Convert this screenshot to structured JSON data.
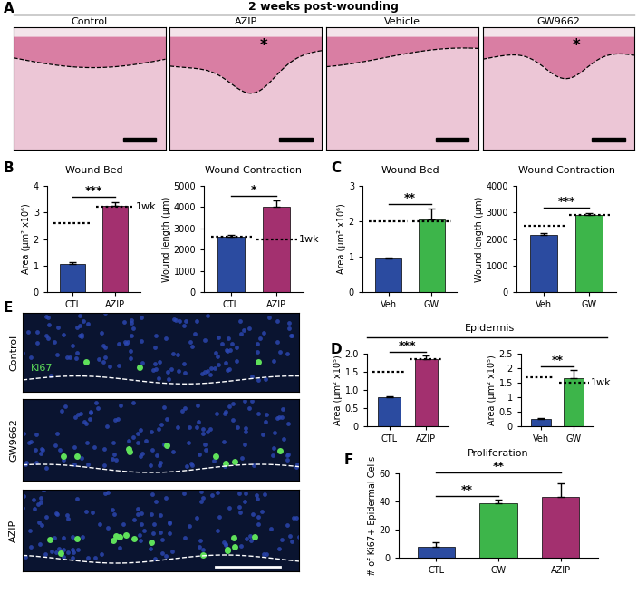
{
  "figure": {
    "header": "2 weeks post-wounding",
    "panel_labels": [
      "A",
      "B",
      "C",
      "D",
      "E",
      "F"
    ],
    "group_label": "Epidermis",
    "wound_images": [
      "Control",
      "AZIP",
      "Vehicle",
      "GW9662"
    ],
    "marked_images": [
      "AZIP",
      "GW9662"
    ],
    "mark": "*",
    "stain_images": [
      "Control",
      "GW9662",
      "AZIP"
    ],
    "stain": "Ki67"
  },
  "chart_data": [
    {
      "type": "bar",
      "title": "Wound Bed",
      "ylabel": "Area (µm² x10⁶)",
      "categories": [
        "CTL",
        "AZIP"
      ],
      "values": [
        1.05,
        3.25
      ],
      "errors": [
        0.08,
        0.15
      ],
      "colors": [
        "#2b4ba0",
        "#a3306f"
      ],
      "reference_values": [
        2.6,
        3.2
      ],
      "annotations": [
        {
          "text": "1wk",
          "category": "AZIP"
        }
      ],
      "significance": [
        {
          "from": "CTL",
          "to": "AZIP",
          "text": "***"
        }
      ],
      "ylim": [
        0,
        4
      ],
      "yticks": [
        0,
        1,
        2,
        3,
        4
      ]
    },
    {
      "type": "bar",
      "title": "Wound Contraction",
      "ylabel": "Wound length (µm)",
      "categories": [
        "CTL",
        "AZIP"
      ],
      "values": [
        2600,
        4000
      ],
      "errors": [
        100,
        300
      ],
      "colors": [
        "#2b4ba0",
        "#a3306f"
      ],
      "reference_values": [
        2600,
        2500
      ],
      "annotations": [
        {
          "text": "1wk",
          "category": "AZIP"
        }
      ],
      "significance": [
        {
          "from": "CTL",
          "to": "AZIP",
          "text": "*"
        }
      ],
      "ylim": [
        0,
        5000
      ],
      "yticks": [
        0,
        1000,
        2000,
        3000,
        4000,
        5000
      ]
    },
    {
      "type": "bar",
      "title": "Wound Bed",
      "ylabel": "Area (µm² x10⁶)",
      "categories": [
        "Veh",
        "GW"
      ],
      "values": [
        0.95,
        2.05
      ],
      "errors": [
        0.03,
        0.3
      ],
      "colors": [
        "#2b4ba0",
        "#3db54a"
      ],
      "reference_values": [
        2.0,
        2.0
      ],
      "significance": [
        {
          "from": "Veh",
          "to": "GW",
          "text": "**"
        }
      ],
      "ylim": [
        0,
        3
      ],
      "yticks": [
        0,
        1,
        2,
        3
      ]
    },
    {
      "type": "bar",
      "title": "Wound Contraction",
      "ylabel": "Wound length (µm)",
      "categories": [
        "Veh",
        "GW"
      ],
      "values": [
        2150,
        2900
      ],
      "errors": [
        80,
        80
      ],
      "colors": [
        "#2b4ba0",
        "#3db54a"
      ],
      "reference_values": [
        2500,
        2900
      ],
      "significance": [
        {
          "from": "Veh",
          "to": "GW",
          "text": "***"
        }
      ],
      "ylim": [
        0,
        4000
      ],
      "yticks": [
        0,
        1000,
        2000,
        3000,
        4000
      ]
    },
    {
      "type": "bar",
      "ylabel": "Area (µm² x10⁵)",
      "categories": [
        "CTL",
        "AZIP"
      ],
      "values": [
        0.8,
        1.85
      ],
      "errors": [
        0.03,
        0.1
      ],
      "colors": [
        "#2b4ba0",
        "#a3306f"
      ],
      "reference_values": [
        1.5,
        1.85
      ],
      "significance": [
        {
          "from": "CTL",
          "to": "AZIP",
          "text": "***"
        }
      ],
      "ylim": [
        0,
        2
      ],
      "yticks": [
        0,
        0.5,
        {
          "value": 1,
          "label": "1.0"
        },
        1.5,
        {
          "value": 2,
          "label": "2.0"
        }
      ]
    },
    {
      "type": "bar",
      "ylabel": "Area (µm² x10⁵)",
      "categories": [
        "Veh",
        "GW"
      ],
      "values": [
        0.25,
        1.65
      ],
      "errors": [
        0.03,
        0.3
      ],
      "colors": [
        "#2b4ba0",
        "#3db54a"
      ],
      "reference_values": [
        1.7,
        1.5
      ],
      "annotations": [
        {
          "text": "1wk",
          "category": "GW"
        }
      ],
      "significance": [
        {
          "from": "Veh",
          "to": "GW",
          "text": "**"
        }
      ],
      "ylim": [
        0,
        2.5
      ],
      "yticks": [
        0,
        0.5,
        1,
        1.5,
        2,
        2.5
      ]
    },
    {
      "type": "bar",
      "title": "Proliferation",
      "ylabel": "# of Ki67+ Epidermal Cells",
      "categories": [
        "CTL",
        "GW",
        "AZIP"
      ],
      "values": [
        8,
        39,
        43
      ],
      "errors": [
        3,
        2,
        10
      ],
      "colors": [
        "#2b4ba0",
        "#3db54a",
        "#a3306f"
      ],
      "significance": [
        {
          "from": "CTL",
          "to": "GW",
          "text": "**"
        },
        {
          "from": "CTL",
          "to": "AZIP",
          "text": "**"
        }
      ],
      "ylim": [
        0,
        60
      ],
      "yticks": [
        0,
        20,
        40,
        60
      ]
    }
  ]
}
